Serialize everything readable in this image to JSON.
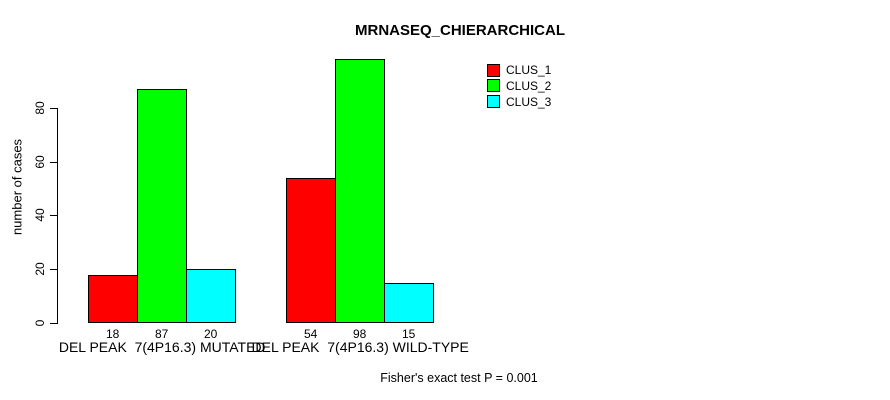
{
  "title": "MRNASEQ_CHIERARCHICAL",
  "chart_data": {
    "type": "bar",
    "title": "MRNASEQ_CHIERARCHICAL",
    "xlabel": "",
    "ylabel": "number of cases",
    "categories": [
      "DEL PEAK  7(4P16.3) MUTATED",
      "DEL PEAK  7(4P16.3) WILD-TYPE"
    ],
    "series": [
      {
        "name": "CLUS_1",
        "color": "#FF0000",
        "values": [
          18,
          54
        ]
      },
      {
        "name": "CLUS_2",
        "color": "#00FF00",
        "values": [
          87,
          98
        ]
      },
      {
        "name": "CLUS_3",
        "color": "#00FFFF",
        "values": [
          20,
          15
        ]
      }
    ],
    "bar_value_labels": [
      [
        18,
        87,
        20
      ],
      [
        54,
        98,
        15
      ]
    ],
    "yticks": [
      0,
      20,
      40,
      60,
      80
    ],
    "ylim": [
      0,
      100
    ],
    "grid": false,
    "legend": {
      "position": "top-right",
      "entries": [
        "CLUS_1",
        "CLUS_2",
        "CLUS_3"
      ]
    },
    "annotation": "Fisher's exact test P = 0.001"
  }
}
